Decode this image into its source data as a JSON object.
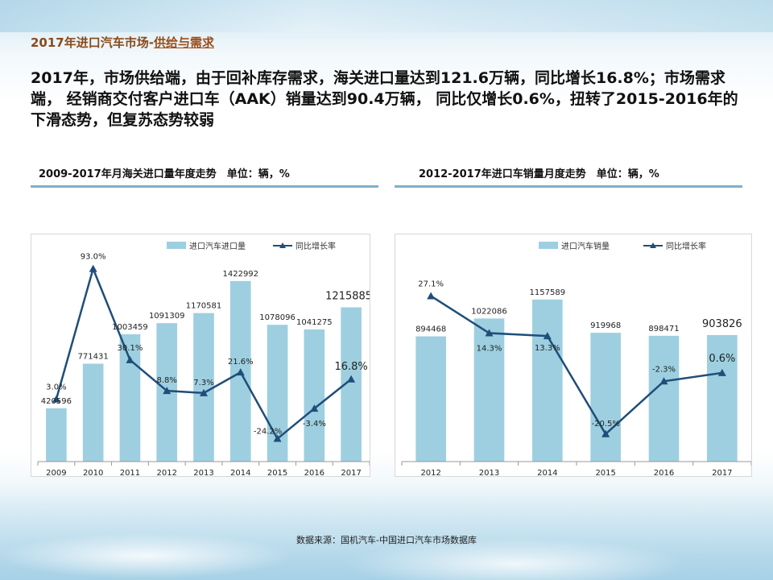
{
  "page": {
    "title_prefix": "2017年进口汽车市场-",
    "title_highlight": "供给与需求",
    "summary": "2017年，市场供给端，由于回补库存需求，海关进口量达到121.6万辆，同比增长16.8%；市场需求端， 经销商交付客户进口车（AAK）销量达到90.4万辆， 同比仅增长0.6%，扭转了2015-2016年的下滑态势，但复苏态势较弱",
    "source": "数据来源：国机汽车-中国进口汽车市场数据库"
  },
  "colors": {
    "bar": "#9dcfe0",
    "line": "#1f4e79",
    "rule": "#7fb1c9",
    "title": "#8a4a1a"
  },
  "chart_data": [
    {
      "type": "bar",
      "title": "2009-2017年月海关进口量年度走势　单位：辆，%",
      "categories": [
        "2009",
        "2010",
        "2011",
        "2012",
        "2013",
        "2014",
        "2015",
        "2016",
        "2017"
      ],
      "series": [
        {
          "name": "进口汽车进口量",
          "kind": "bar",
          "values": [
            420596,
            771431,
            1003459,
            1091309,
            1170581,
            1422992,
            1078096,
            1041275,
            1215885
          ],
          "labels": [
            "420596",
            "771431",
            "1003459",
            "1091309",
            "1170581",
            "1422992",
            "1078096",
            "1041275",
            "1215885"
          ]
        },
        {
          "name": "同比增长率",
          "kind": "line",
          "values": [
            3.0,
            93.0,
            30.1,
            8.8,
            7.3,
            21.6,
            -24.2,
            -3.4,
            16.8
          ],
          "labels": [
            "3.0%",
            "93.0%",
            "30.1%",
            "8.8%",
            "7.3%",
            "21.6%",
            "-24.2%",
            "-3.4%",
            "16.8%"
          ]
        }
      ],
      "ylim_bar": [
        0,
        1600000
      ],
      "ylim_line": [
        -40,
        100
      ],
      "legend": "top-right"
    },
    {
      "type": "bar",
      "title": "2012-2017年进口车销量月度走势　单位：辆，%",
      "categories": [
        "2012",
        "2013",
        "2014",
        "2015",
        "2016",
        "2017"
      ],
      "series": [
        {
          "name": "进口汽车销量",
          "kind": "bar",
          "values": [
            894468,
            1022086,
            1157589,
            919968,
            898471,
            903826
          ],
          "labels": [
            "894468",
            "1022086",
            "1157589",
            "919968",
            "898471",
            "903826"
          ]
        },
        {
          "name": "同比增长率",
          "kind": "line",
          "values": [
            27.1,
            14.3,
            13.3,
            -20.5,
            -2.3,
            0.6
          ],
          "labels": [
            "27.1%",
            "14.3%",
            "13.3%",
            "-20.5%",
            "-2.3%",
            "0.6%"
          ]
        }
      ],
      "ylim_bar": [
        0,
        1450000
      ],
      "ylim_line": [
        -30,
        40
      ],
      "legend": "top-right"
    }
  ]
}
